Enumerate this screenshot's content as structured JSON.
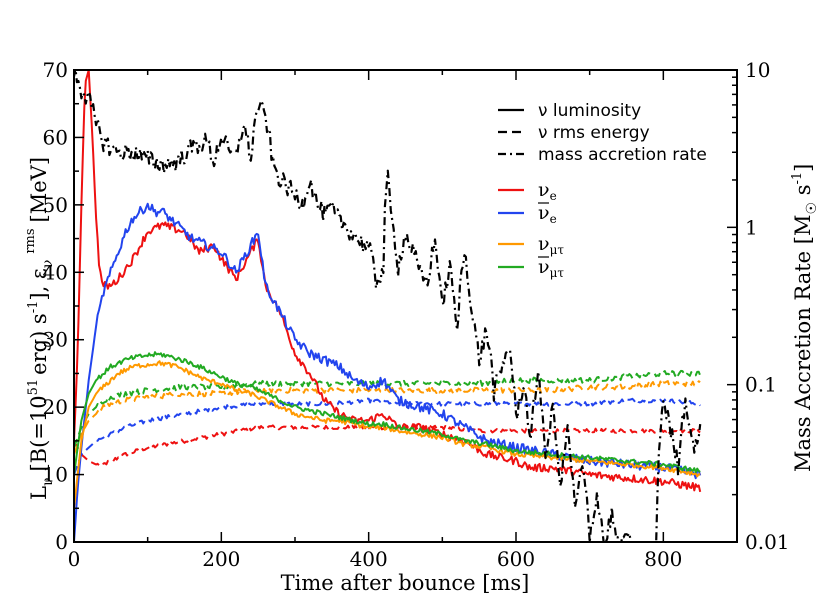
{
  "chart_data": {
    "type": "line",
    "title": "",
    "xlabel": "Time after bounce [ms]",
    "ylabel": "L_ν [B(=10^51 erg) s^-1], ε_ν^rms [MeV]",
    "ylabel_parts": {
      "L": "L",
      "nu": "ν",
      "unit": "[B(=10",
      "exp51": "51",
      "erg": "erg) s",
      "expm1": "-1",
      "comma": "], ε",
      "rms": "rms",
      "mev": "[MeV]"
    },
    "y2label": "Mass Accretion Rate [M☉ s^-1]",
    "y2label_parts": {
      "text": "Mass Accretion Rate [M",
      "sun": "☉",
      "s": " s",
      "exp": "-1",
      "close": "]"
    },
    "xlim": [
      0,
      900
    ],
    "ylim": [
      0,
      70
    ],
    "y2lim": [
      0.01,
      10
    ],
    "y2scale": "log",
    "x_ticks": [
      "0",
      "200",
      "400",
      "600",
      "800"
    ],
    "y_ticks": [
      "0",
      "10",
      "20",
      "30",
      "40",
      "50",
      "60",
      "70"
    ],
    "y2_ticks": [
      "0.01",
      "0.1",
      "1",
      "10"
    ],
    "grid": false,
    "legend_position": "top-right",
    "legend_styles": [
      {
        "label": "ν luminosity",
        "dash": "solid"
      },
      {
        "label": "ν rms energy",
        "dash": "dashed"
      },
      {
        "label": "mass accretion rate",
        "dash": "dash-dot"
      }
    ],
    "legend_species": [
      {
        "label": "ν",
        "sub": "e",
        "bar": false,
        "color": "#ee1111"
      },
      {
        "label": "ν",
        "sub": "e",
        "bar": true,
        "color": "#2244ee"
      },
      {
        "label": "ν",
        "sub": "μτ",
        "bar": false,
        "color": "#ff9900"
      },
      {
        "label": "ν",
        "sub": "μτ",
        "bar": true,
        "color": "#22aa22"
      }
    ],
    "series": [
      {
        "name": "νe luminosity",
        "color": "#ee1111",
        "style": "solid",
        "axis": "left",
        "noise": 0.6,
        "x": [
          0,
          5,
          10,
          15,
          20,
          25,
          30,
          35,
          40,
          50,
          60,
          80,
          100,
          120,
          150,
          170,
          190,
          200,
          220,
          240,
          250,
          260,
          280,
          300,
          320,
          340,
          360,
          380,
          400,
          420,
          440,
          470,
          500,
          530,
          560,
          600,
          620,
          650,
          700,
          750,
          800,
          850
        ],
        "y": [
          15,
          28,
          50,
          68,
          70,
          60,
          48,
          40,
          38,
          38,
          39,
          42,
          46,
          47,
          46,
          43,
          44,
          42,
          39,
          43,
          45,
          38,
          34,
          28,
          25,
          21,
          19,
          18,
          18,
          19,
          17,
          17,
          16,
          15,
          13,
          12,
          11,
          11,
          10,
          9.5,
          9,
          8
        ]
      },
      {
        "name": "ν̄e luminosity",
        "color": "#2244ee",
        "style": "solid",
        "axis": "left",
        "noise": 0.7,
        "x": [
          0,
          5,
          10,
          20,
          30,
          40,
          50,
          60,
          70,
          80,
          90,
          100,
          110,
          120,
          140,
          160,
          180,
          200,
          220,
          240,
          250,
          260,
          280,
          300,
          320,
          340,
          360,
          380,
          400,
          420,
          440,
          470,
          500,
          530,
          560,
          600,
          650,
          700,
          750,
          800,
          850
        ],
        "y": [
          0,
          8,
          14,
          24,
          32,
          37,
          40,
          43,
          46,
          48,
          49,
          50,
          49,
          49,
          47,
          45,
          44,
          43,
          40,
          44,
          46,
          38,
          34,
          30,
          28,
          27,
          26,
          24,
          23,
          24,
          21,
          20,
          19,
          17,
          15,
          14,
          13,
          12,
          11.5,
          11,
          10
        ]
      },
      {
        "name": "νμτ luminosity",
        "color": "#ff9900",
        "style": "solid",
        "axis": "left",
        "noise": 0.35,
        "x": [
          0,
          5,
          10,
          20,
          30,
          40,
          50,
          60,
          70,
          80,
          90,
          100,
          110,
          120,
          140,
          160,
          180,
          200,
          220,
          240,
          260,
          280,
          300,
          320,
          340,
          360,
          380,
          400,
          420,
          440,
          470,
          500,
          530,
          560,
          600,
          650,
          700,
          750,
          800,
          850
        ],
        "y": [
          5,
          10,
          15,
          20,
          22,
          23,
          24,
          25,
          25.5,
          26,
          26.2,
          26.3,
          26.5,
          26.5,
          26,
          25,
          24,
          23.5,
          22.5,
          22,
          21,
          20,
          19,
          18.5,
          18,
          18,
          17.5,
          17,
          17,
          16.5,
          16,
          15.5,
          14.5,
          14,
          13,
          12.5,
          12,
          11.5,
          11,
          10
        ]
      },
      {
        "name": "ν̄μτ luminosity",
        "color": "#22aa22",
        "style": "solid",
        "axis": "left",
        "noise": 0.35,
        "x": [
          0,
          5,
          10,
          20,
          30,
          40,
          50,
          60,
          70,
          80,
          90,
          100,
          110,
          120,
          140,
          160,
          180,
          200,
          220,
          240,
          260,
          280,
          300,
          320,
          340,
          360,
          380,
          400,
          420,
          440,
          470,
          500,
          530,
          560,
          600,
          650,
          700,
          750,
          800,
          850
        ],
        "y": [
          10,
          14,
          18,
          22,
          24,
          25,
          26,
          26.5,
          27,
          27.3,
          27.5,
          27.7,
          27.8,
          27.8,
          27.2,
          26.5,
          25.5,
          24.5,
          23.5,
          23,
          22,
          21,
          20,
          19.5,
          19,
          18.5,
          18,
          17.5,
          17.5,
          17,
          16.5,
          16,
          15,
          14.5,
          13.5,
          13,
          12.5,
          12,
          11.5,
          10.5
        ]
      },
      {
        "name": "νe rms energy",
        "color": "#ee1111",
        "style": "dashed",
        "axis": "left",
        "noise": 0.3,
        "x": [
          0,
          10,
          20,
          30,
          40,
          50,
          70,
          100,
          150,
          200,
          250,
          300,
          350,
          400,
          450,
          500,
          550,
          600,
          650,
          700,
          750,
          800,
          850
        ],
        "y": [
          15,
          13,
          12,
          11.5,
          11.5,
          12,
          13,
          14,
          15,
          16,
          17,
          17,
          17,
          17,
          17,
          17,
          16.5,
          16.5,
          16.5,
          16.5,
          16.5,
          16.5,
          16.5
        ]
      },
      {
        "name": "ν̄e rms energy",
        "color": "#2244ee",
        "style": "dashed",
        "axis": "left",
        "noise": 0.3,
        "x": [
          0,
          10,
          20,
          30,
          40,
          50,
          70,
          100,
          150,
          200,
          250,
          300,
          350,
          400,
          450,
          500,
          550,
          600,
          650,
          700,
          750,
          800,
          850
        ],
        "y": [
          10,
          13,
          14,
          15,
          15.5,
          16,
          17,
          18,
          19,
          20,
          20.5,
          20.5,
          20.5,
          21,
          20.5,
          20.5,
          20.5,
          20.5,
          20.5,
          20.5,
          21,
          21,
          20.5
        ]
      },
      {
        "name": "νμτ rms energy",
        "color": "#ff9900",
        "style": "dashed",
        "axis": "left",
        "noise": 0.4,
        "x": [
          0,
          10,
          20,
          30,
          40,
          50,
          70,
          100,
          150,
          200,
          250,
          300,
          350,
          400,
          450,
          500,
          550,
          600,
          650,
          700,
          750,
          800,
          850
        ],
        "y": [
          13,
          16,
          18,
          19,
          20,
          20.5,
          21,
          21.5,
          22,
          22,
          22.5,
          22.5,
          22.5,
          22.5,
          22.5,
          22.5,
          22.5,
          22.5,
          22.5,
          23,
          23,
          23.5,
          23.5
        ]
      },
      {
        "name": "ν̄μτ rms energy",
        "color": "#22aa22",
        "style": "dashed",
        "axis": "left",
        "noise": 0.4,
        "x": [
          0,
          10,
          20,
          30,
          40,
          50,
          70,
          100,
          150,
          200,
          250,
          300,
          350,
          400,
          450,
          500,
          550,
          600,
          650,
          700,
          750,
          800,
          850
        ],
        "y": [
          14,
          17,
          19,
          20,
          21,
          21.5,
          22,
          22.5,
          23,
          23,
          23.5,
          23.5,
          23.5,
          23.5,
          23.5,
          23.5,
          23.5,
          24,
          24,
          24,
          24.5,
          25,
          25
        ]
      },
      {
        "name": "mass accretion rate",
        "color": "#000000",
        "style": "dashdot",
        "axis": "right",
        "noise": 0,
        "x": [
          0,
          5,
          10,
          15,
          20,
          25,
          30,
          40,
          50,
          60,
          80,
          100,
          120,
          140,
          160,
          180,
          190,
          200,
          210,
          220,
          230,
          240,
          250,
          260,
          270,
          280,
          290,
          300,
          310,
          320,
          330,
          340,
          350,
          360,
          370,
          380,
          390,
          400,
          410,
          420,
          425,
          430,
          440,
          450,
          460,
          470,
          480,
          490,
          500,
          510,
          520,
          530,
          540,
          550,
          560,
          570,
          580,
          590,
          600,
          610,
          620,
          630,
          640,
          650,
          660,
          670,
          680,
          690,
          700,
          710,
          720,
          730,
          740,
          750,
          760,
          770,
          780,
          790,
          800,
          810,
          820,
          830,
          840,
          850
        ],
        "y": [
          9.5,
          9.0,
          7.5,
          7.0,
          6.5,
          5.5,
          4.5,
          3.5,
          3.2,
          3.0,
          3.0,
          2.7,
          2.5,
          2.6,
          3.2,
          3.5,
          2.6,
          3.8,
          3.0,
          2.8,
          4.5,
          2.7,
          6.0,
          5.0,
          2.5,
          2.0,
          1.8,
          1.6,
          1.4,
          2.0,
          1.4,
          1.2,
          1.3,
          1.1,
          1.0,
          0.9,
          0.8,
          0.75,
          0.45,
          0.55,
          2.2,
          1.2,
          0.55,
          0.9,
          0.7,
          0.5,
          0.45,
          0.8,
          0.3,
          0.55,
          0.2,
          0.7,
          0.28,
          0.14,
          0.22,
          0.09,
          0.12,
          0.18,
          0.06,
          0.1,
          0.04,
          0.12,
          0.03,
          0.07,
          0.02,
          0.05,
          0.015,
          0.03,
          0.01,
          0.02,
          0.009,
          0.015,
          0.008,
          0.012,
          0.007,
          0.009,
          0.006,
          0.008,
          0.08,
          0.05,
          0.03,
          0.08,
          0.04,
          0.05
        ]
      }
    ]
  }
}
